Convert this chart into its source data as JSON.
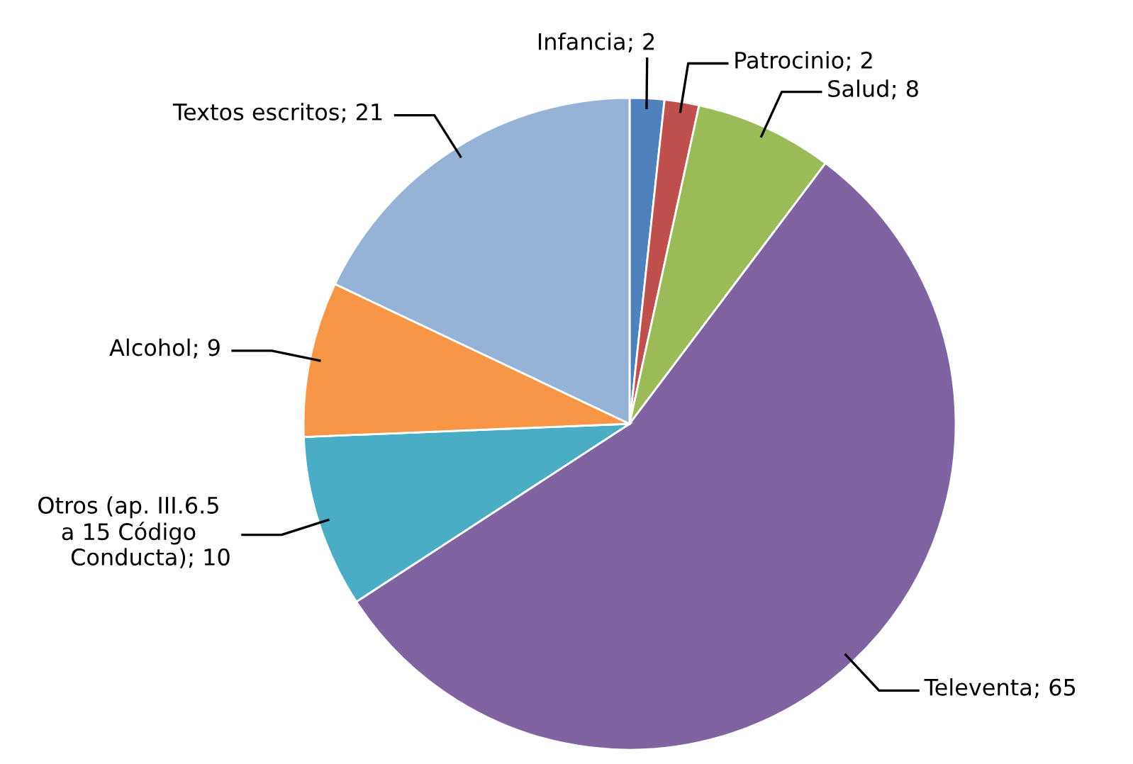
{
  "chart_data": {
    "type": "pie",
    "categories": [
      "Infancia",
      "Patrocinio",
      "Salud",
      "Televenta",
      "Otros (ap. III.6.5\na 15 Código\nConducta)",
      "Alcohol",
      "Textos escritos"
    ],
    "values": [
      2,
      2,
      8,
      65,
      10,
      9,
      21
    ],
    "colors": [
      "#4f81bd",
      "#c0504d",
      "#9bbb59",
      "#8064a2",
      "#4bacc6",
      "#f79646",
      "#95b3d7"
    ],
    "value_labels": [
      "; 2",
      "; 2",
      "; 8",
      "; 65",
      "; 10",
      "; 9",
      "; 21"
    ],
    "legend": false
  }
}
